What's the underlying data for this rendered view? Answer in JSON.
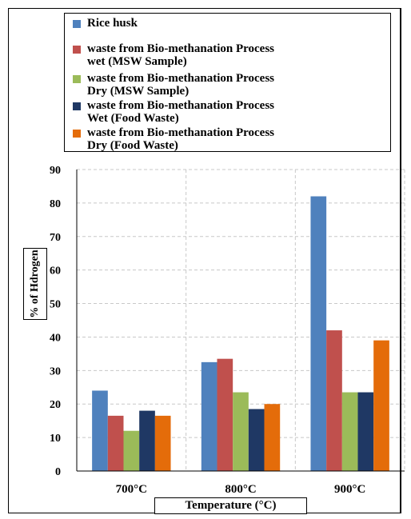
{
  "chart_data": {
    "type": "bar",
    "title": "",
    "xlabel": "Temperature (°C)",
    "ylabel": "% of Hdrogen",
    "ylim": [
      0,
      90
    ],
    "yticks": [
      "0",
      "10",
      "20",
      "30",
      "40",
      "50",
      "60",
      "70",
      "80",
      "90"
    ],
    "grid": true,
    "legend_position": "top",
    "categories": [
      "700°C",
      "800°C",
      "900°C"
    ],
    "series": [
      {
        "name": "Rice husk",
        "color": "#4F81BD",
        "values": [
          24,
          32.5,
          82
        ]
      },
      {
        "name": "waste from Bio-methanation Process\nwet (MSW Sample)",
        "color": "#C0504D",
        "values": [
          16.5,
          33.5,
          42
        ]
      },
      {
        "name": "waste from Bio-methanation Process\nDry (MSW Sample)",
        "color": "#9BBB59",
        "values": [
          12,
          23.5,
          23.5
        ]
      },
      {
        "name": "waste from Bio-methanation Process\nWet  (Food Waste)",
        "color": "#1F3864",
        "values": [
          18,
          18.5,
          23.5
        ]
      },
      {
        "name": "waste from Bio-methanation Process\nDry (Food Waste)",
        "color": "#E46C0A",
        "values": [
          16.5,
          20,
          39
        ]
      }
    ]
  }
}
